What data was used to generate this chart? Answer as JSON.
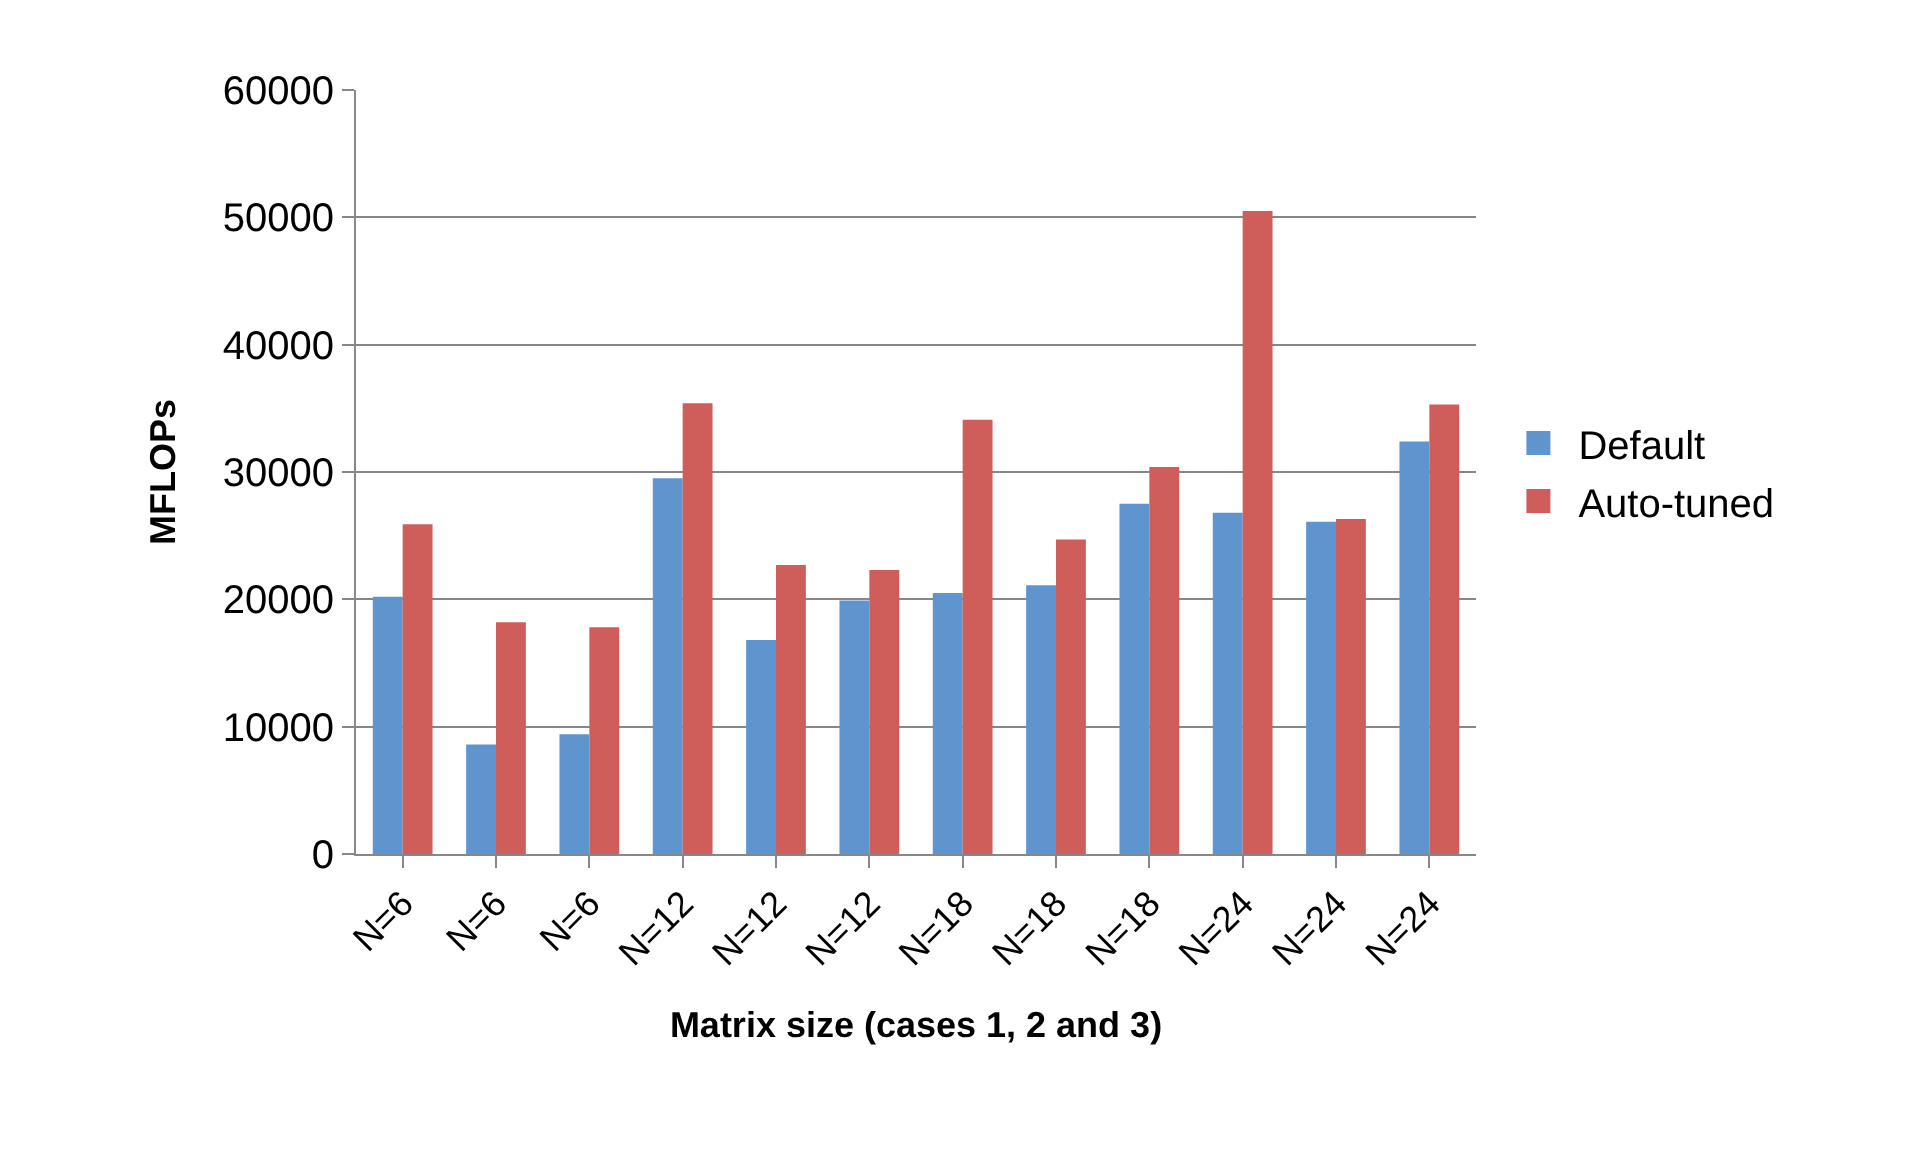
{
  "chart_data": {
    "type": "bar",
    "xlabel": "Matrix size (cases 1, 2 and 3)",
    "ylabel": "MFLOPs",
    "categories": [
      "N=6",
      "N=6",
      "N=6",
      "N=12",
      "N=12",
      "N=12",
      "N=18",
      "N=18",
      "N=18",
      "N=24",
      "N=24",
      "N=24"
    ],
    "series": [
      {
        "name": "Default",
        "color": "#5e95cf",
        "values": [
          20200,
          8600,
          9400,
          29500,
          16800,
          19900,
          20500,
          21100,
          27500,
          26800,
          26100,
          32400
        ]
      },
      {
        "name": "Auto-tuned",
        "color": "#cf5e5b",
        "values": [
          25900,
          18200,
          17800,
          35400,
          22700,
          22300,
          34100,
          24700,
          30400,
          50500,
          26300,
          35300
        ]
      }
    ],
    "ylim": [
      0,
      60000
    ],
    "yticks": [
      0,
      10000,
      20000,
      30000,
      40000,
      50000,
      60000
    ],
    "grid": "y",
    "legend": "right"
  }
}
